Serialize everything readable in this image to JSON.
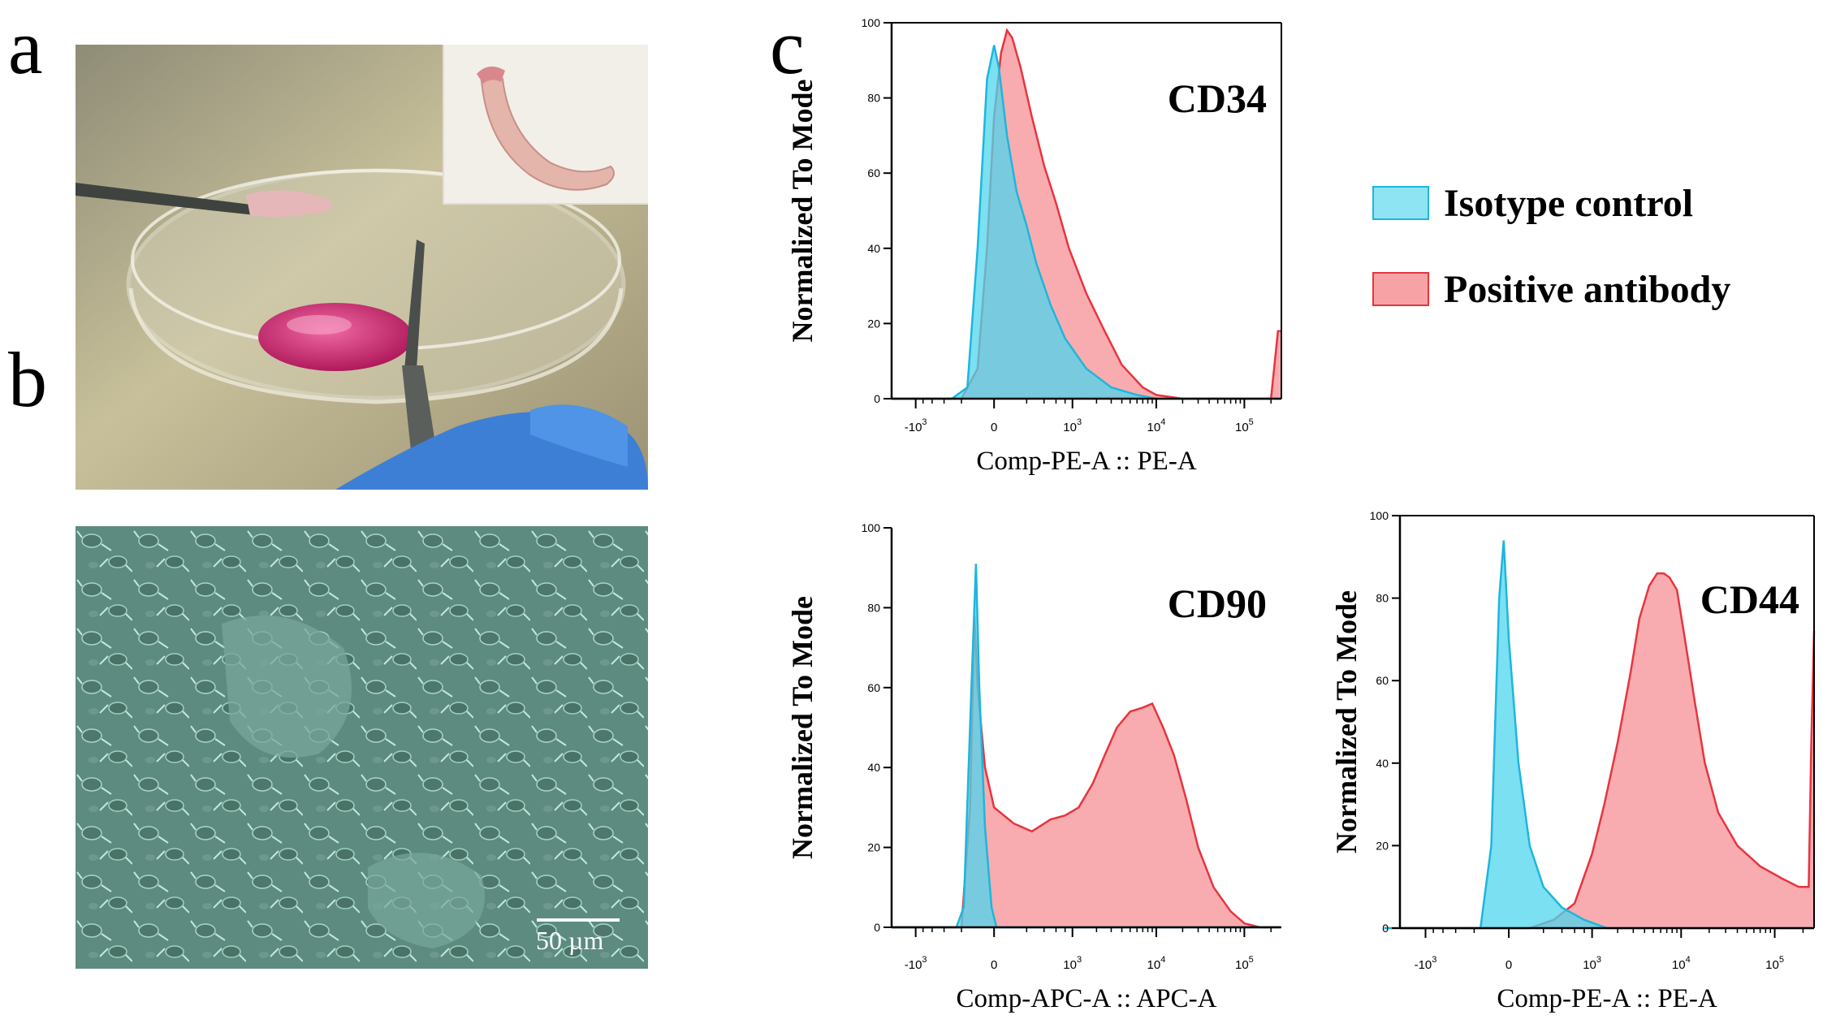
{
  "panels": {
    "a": "a",
    "b": "b",
    "c": "c"
  },
  "photo_a": {
    "description_icon": "dissection-photo-icon",
    "inset_icon": "tissue-inset-icon"
  },
  "photo_b": {
    "scale_bar_label": "50 µm",
    "icon": "cell-culture-micrograph-icon"
  },
  "colors": {
    "isotype": "#4dd6ee",
    "positive": "#f47f85",
    "isotype_edge": "#1eb6dc",
    "positive_edge": "#e8343f"
  },
  "legend": {
    "isotype": "Isotype control",
    "positive": "Positive antibody"
  },
  "chart_data": [
    {
      "type": "area",
      "title": "CD34",
      "xlabel": "Comp-PE-A :: PE-A",
      "ylabel": "Normalized To Mode",
      "x_scale": "biexponential",
      "xticks": [
        "-10^3",
        "0",
        "10^3",
        "10^4",
        "10^5"
      ],
      "ylim": [
        0,
        100
      ],
      "yticks": [
        "0",
        "20",
        "40",
        "60",
        "80",
        "100"
      ],
      "series": [
        {
          "name": "Isotype control",
          "points": [
            [
              -2000,
              0
            ],
            [
              -300,
              0
            ],
            [
              -150,
              3
            ],
            [
              -80,
              40
            ],
            [
              -30,
              85
            ],
            [
              0,
              94
            ],
            [
              20,
              88
            ],
            [
              60,
              70
            ],
            [
              120,
              55
            ],
            [
              200,
              46
            ],
            [
              300,
              36
            ],
            [
              500,
              25
            ],
            [
              800,
              16
            ],
            [
              1500,
              8
            ],
            [
              3000,
              3
            ],
            [
              6000,
              1
            ],
            [
              10000,
              0
            ],
            [
              250000,
              0
            ]
          ]
        },
        {
          "name": "Positive antibody",
          "points": [
            [
              -2000,
              0
            ],
            [
              -200,
              0
            ],
            [
              -80,
              8
            ],
            [
              -30,
              40
            ],
            [
              0,
              75
            ],
            [
              30,
              92
            ],
            [
              60,
              98
            ],
            [
              90,
              96
            ],
            [
              150,
              88
            ],
            [
              250,
              75
            ],
            [
              400,
              62
            ],
            [
              600,
              52
            ],
            [
              900,
              40
            ],
            [
              1500,
              28
            ],
            [
              2500,
              18
            ],
            [
              4000,
              9
            ],
            [
              7000,
              3
            ],
            [
              10000,
              1
            ],
            [
              20000,
              0
            ],
            [
              200000,
              0
            ],
            [
              240000,
              18
            ],
            [
              262000,
              18
            ]
          ]
        }
      ]
    },
    {
      "type": "area",
      "title": "CD90",
      "xlabel": "Comp-APC-A :: APC-A",
      "ylabel": "Normalized To Mode",
      "x_scale": "biexponential",
      "xticks": [
        "-10^3",
        "0",
        "10^3",
        "10^4",
        "10^5"
      ],
      "ylim": [
        0,
        100
      ],
      "yticks": [
        "0",
        "20",
        "40",
        "60",
        "80",
        "100"
      ],
      "series": [
        {
          "name": "Isotype control",
          "points": [
            [
              -2000,
              0
            ],
            [
              -250,
              0
            ],
            [
              -180,
              5
            ],
            [
              -120,
              60
            ],
            [
              -90,
              91
            ],
            [
              -70,
              60
            ],
            [
              -40,
              25
            ],
            [
              -10,
              5
            ],
            [
              10,
              0
            ],
            [
              250000,
              0
            ]
          ]
        },
        {
          "name": "Positive antibody",
          "points": [
            [
              -2000,
              0
            ],
            [
              -200,
              0
            ],
            [
              -130,
              30
            ],
            [
              -100,
              78
            ],
            [
              -80,
              60
            ],
            [
              -40,
              40
            ],
            [
              0,
              30
            ],
            [
              100,
              26
            ],
            [
              250,
              24
            ],
            [
              500,
              27
            ],
            [
              800,
              28
            ],
            [
              1200,
              30
            ],
            [
              1800,
              36
            ],
            [
              2500,
              43
            ],
            [
              3500,
              50
            ],
            [
              5000,
              54
            ],
            [
              7000,
              55
            ],
            [
              9000,
              56
            ],
            [
              12000,
              50
            ],
            [
              16000,
              43
            ],
            [
              22000,
              32
            ],
            [
              30000,
              20
            ],
            [
              45000,
              10
            ],
            [
              70000,
              4
            ],
            [
              100000,
              1
            ],
            [
              150000,
              0
            ],
            [
              250000,
              0
            ]
          ]
        }
      ]
    },
    {
      "type": "area",
      "title": "CD44",
      "xlabel": "Comp-PE-A :: PE-A",
      "ylabel": "Normalized To Mode",
      "x_scale": "biexponential",
      "xticks": [
        "-10^3",
        "0",
        "10^3",
        "10^4",
        "10^5"
      ],
      "ylim": [
        0,
        100
      ],
      "yticks": [
        "0",
        "20",
        "40",
        "60",
        "80",
        "100"
      ],
      "series": [
        {
          "name": "Isotype control",
          "points": [
            [
              -3000,
              0
            ],
            [
              -150,
              0
            ],
            [
              -80,
              20
            ],
            [
              -40,
              80
            ],
            [
              -20,
              94
            ],
            [
              0,
              70
            ],
            [
              40,
              40
            ],
            [
              100,
              20
            ],
            [
              200,
              10
            ],
            [
              400,
              5
            ],
            [
              800,
              2
            ],
            [
              1500,
              0
            ],
            [
              250000,
              0
            ]
          ]
        },
        {
          "name": "Positive antibody",
          "points": [
            [
              -3000,
              0
            ],
            [
              100,
              0
            ],
            [
              300,
              2
            ],
            [
              600,
              6
            ],
            [
              1000,
              18
            ],
            [
              1400,
              30
            ],
            [
              2000,
              45
            ],
            [
              2800,
              62
            ],
            [
              3500,
              75
            ],
            [
              4500,
              83
            ],
            [
              5500,
              86
            ],
            [
              6500,
              86
            ],
            [
              7500,
              85
            ],
            [
              9000,
              82
            ],
            [
              11000,
              70
            ],
            [
              14000,
              55
            ],
            [
              18000,
              40
            ],
            [
              25000,
              28
            ],
            [
              40000,
              20
            ],
            [
              70000,
              15
            ],
            [
              120000,
              12
            ],
            [
              180000,
              10
            ],
            [
              230000,
              10
            ],
            [
              245000,
              45
            ],
            [
              262000,
              72
            ]
          ]
        }
      ]
    }
  ]
}
